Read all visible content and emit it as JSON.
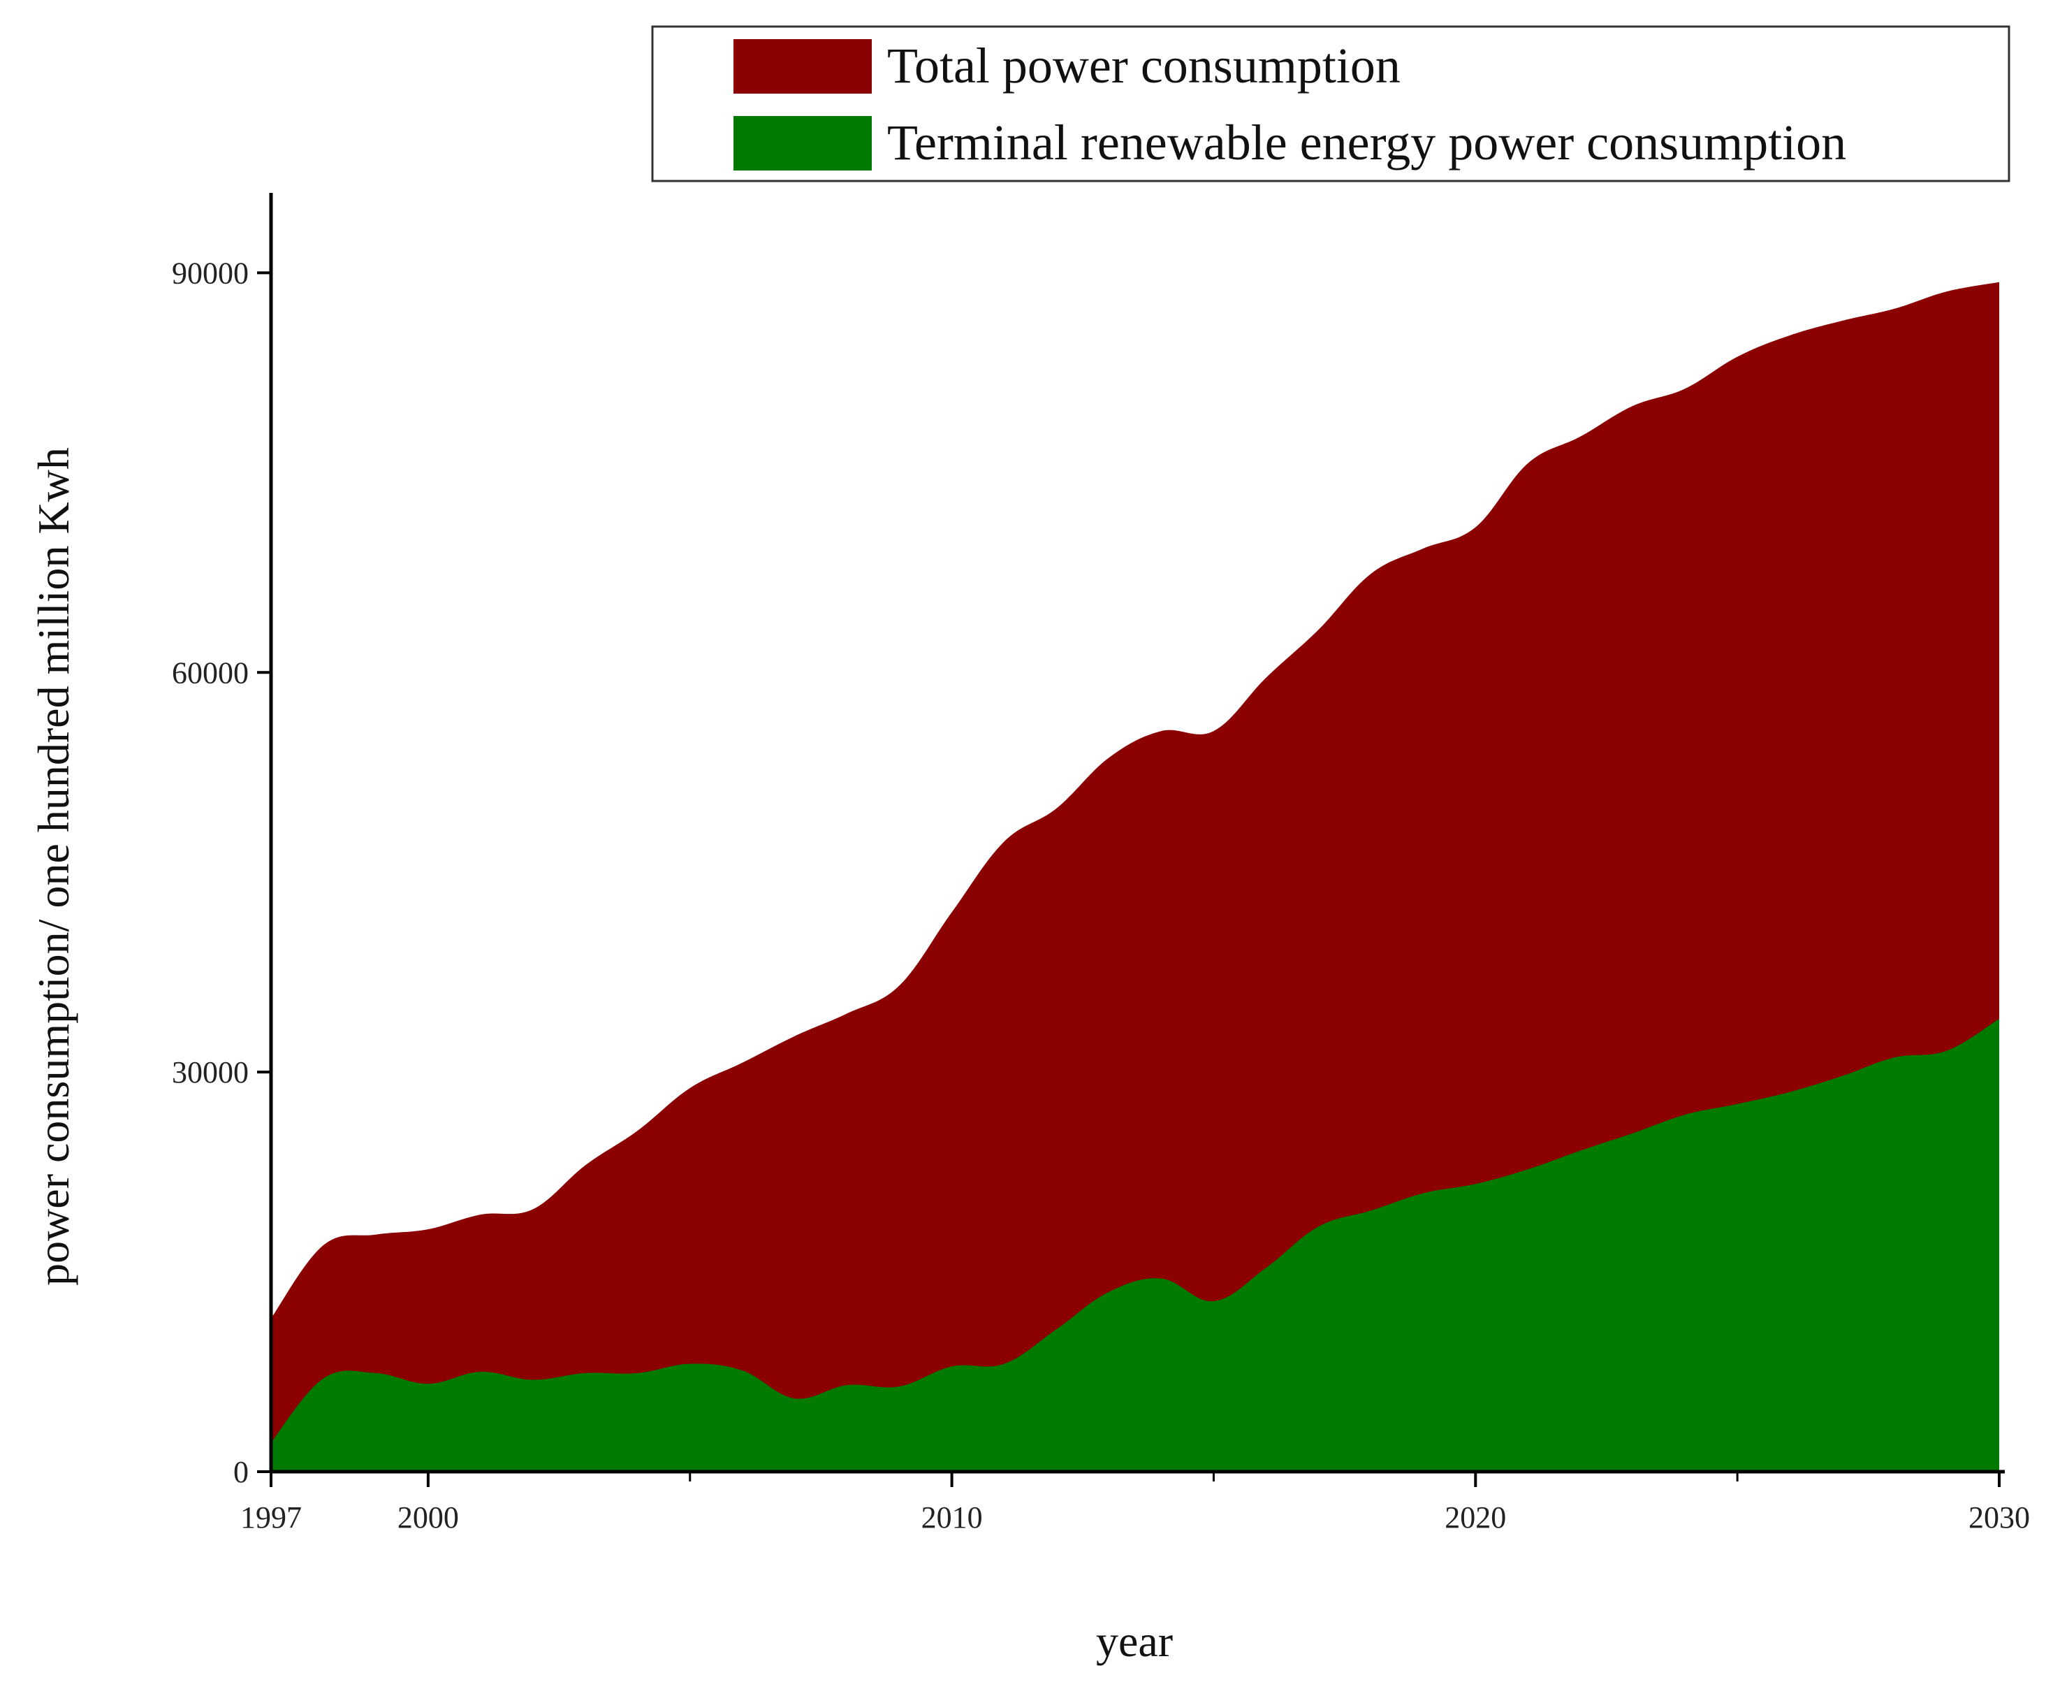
{
  "chart_data": {
    "type": "area",
    "title": "",
    "xlabel": "year",
    "ylabel": "power consumption/ one hundred million Kwh",
    "xlim": [
      1997,
      2030
    ],
    "ylim": [
      0,
      96000
    ],
    "x_ticks": [
      1997,
      2000,
      2010,
      2020,
      2030
    ],
    "x_minor_ticks": [
      2005,
      2015,
      2025
    ],
    "y_ticks": [
      0,
      30000,
      60000,
      90000
    ],
    "grid": false,
    "legend_position": "top-right",
    "x": [
      1997,
      1998,
      1999,
      2000,
      2001,
      2002,
      2003,
      2004,
      2005,
      2006,
      2007,
      2008,
      2009,
      2010,
      2011,
      2012,
      2013,
      2014,
      2015,
      2016,
      2017,
      2018,
      2019,
      2020,
      2021,
      2022,
      2023,
      2024,
      2025,
      2026,
      2027,
      2028,
      2029,
      2030
    ],
    "series": [
      {
        "name": "Total power consumption",
        "color": "#8b0000",
        "values": [
          11500,
          17000,
          17800,
          18200,
          19300,
          19700,
          23000,
          25600,
          28800,
          30700,
          32700,
          34400,
          36500,
          42000,
          47300,
          49800,
          53600,
          55600,
          55600,
          59600,
          63200,
          67400,
          69300,
          70900,
          75700,
          77700,
          80000,
          81300,
          83700,
          85300,
          86400,
          87300,
          88600,
          89300
        ]
      },
      {
        "name": "Terminal renewable energy power consumption",
        "color": "#007a00",
        "values": [
          2200,
          7000,
          7400,
          6600,
          7500,
          6900,
          7400,
          7400,
          8100,
          7600,
          5500,
          6500,
          6400,
          7900,
          8100,
          10700,
          13500,
          14500,
          12800,
          15300,
          18400,
          19600,
          20900,
          21600,
          22700,
          24100,
          25400,
          26800,
          27600,
          28500,
          29700,
          31100,
          31600,
          34000
        ]
      }
    ]
  }
}
